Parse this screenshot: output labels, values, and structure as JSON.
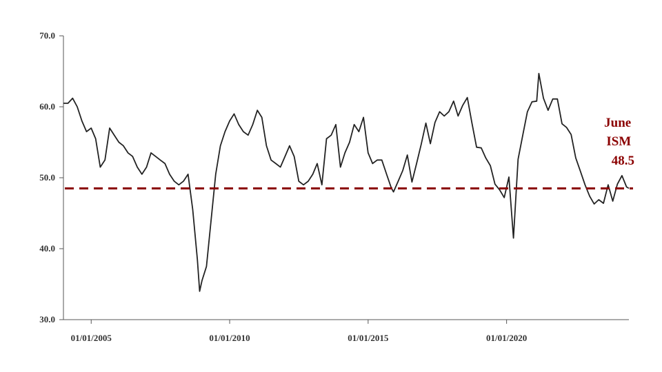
{
  "chart_data": {
    "type": "line",
    "title": "",
    "xlabel": "",
    "ylabel": "",
    "ylim": [
      30,
      70
    ],
    "xlim": [
      "2004-01-01",
      "2024-06-01"
    ],
    "grid": false,
    "legend": "none",
    "y_ticks": [
      "30.0",
      "40.0",
      "50.0",
      "60.0",
      "70.0"
    ],
    "x_ticks": [
      {
        "date": "2005-01-01",
        "label": "01/01/2005"
      },
      {
        "date": "2010-01-01",
        "label": "01/01/2010"
      },
      {
        "date": "2015-01-01",
        "label": "01/01/2015"
      },
      {
        "date": "2020-01-01",
        "label": "01/01/2020"
      }
    ],
    "reference_line": {
      "value": 48.5,
      "color": "#8b0000",
      "style": "dashed"
    },
    "annotation": {
      "lines": [
        "June",
        "ISM",
        "48.5"
      ],
      "color": "#8b0000"
    },
    "series": [
      {
        "color": "#222222",
        "x": [
          "2004-01-01",
          "2004-03-01",
          "2004-05-01",
          "2004-07-01",
          "2004-09-01",
          "2004-11-01",
          "2005-01-01",
          "2005-03-01",
          "2005-05-01",
          "2005-07-01",
          "2005-09-01",
          "2005-11-01",
          "2006-01-01",
          "2006-03-01",
          "2006-05-01",
          "2006-07-01",
          "2006-09-01",
          "2006-11-01",
          "2007-01-01",
          "2007-03-01",
          "2007-05-01",
          "2007-07-01",
          "2007-09-01",
          "2007-11-01",
          "2008-01-01",
          "2008-03-01",
          "2008-05-01",
          "2008-07-01",
          "2008-09-01",
          "2008-11-01",
          "2008-12-01",
          "2009-01-01",
          "2009-03-01",
          "2009-05-01",
          "2009-07-01",
          "2009-09-01",
          "2009-11-01",
          "2010-01-01",
          "2010-03-01",
          "2010-05-01",
          "2010-07-01",
          "2010-09-01",
          "2010-11-01",
          "2011-01-01",
          "2011-03-01",
          "2011-05-01",
          "2011-07-01",
          "2011-09-01",
          "2011-11-01",
          "2012-01-01",
          "2012-03-01",
          "2012-05-01",
          "2012-07-01",
          "2012-09-01",
          "2012-11-01",
          "2013-01-01",
          "2013-03-01",
          "2013-05-01",
          "2013-07-01",
          "2013-09-01",
          "2013-11-01",
          "2014-01-01",
          "2014-03-01",
          "2014-05-01",
          "2014-07-01",
          "2014-09-01",
          "2014-11-01",
          "2015-01-01",
          "2015-03-01",
          "2015-05-01",
          "2015-07-01",
          "2015-09-01",
          "2015-11-01",
          "2015-12-01",
          "2016-02-01",
          "2016-04-01",
          "2016-06-01",
          "2016-08-01",
          "2016-10-01",
          "2016-12-01",
          "2017-02-01",
          "2017-04-01",
          "2017-06-01",
          "2017-08-01",
          "2017-10-01",
          "2017-12-01",
          "2018-02-01",
          "2018-04-01",
          "2018-06-01",
          "2018-08-01",
          "2018-10-01",
          "2018-12-01",
          "2019-02-01",
          "2019-04-01",
          "2019-06-01",
          "2019-08-01",
          "2019-10-01",
          "2019-12-01",
          "2020-02-01",
          "2020-04-01",
          "2020-06-01",
          "2020-08-01",
          "2020-10-01",
          "2020-12-01",
          "2021-02-01",
          "2021-03-01",
          "2021-05-01",
          "2021-07-01",
          "2021-09-01",
          "2021-11-01",
          "2022-01-01",
          "2022-03-01",
          "2022-05-01",
          "2022-07-01",
          "2022-09-01",
          "2022-11-01",
          "2023-01-01",
          "2023-03-01",
          "2023-05-01",
          "2023-07-01",
          "2023-09-01",
          "2023-11-01",
          "2024-01-01",
          "2024-03-01",
          "2024-05-01",
          "2024-06-01"
        ],
        "y": [
          60.5,
          60.5,
          61.2,
          60.0,
          58.0,
          56.5,
          57.0,
          55.5,
          51.5,
          52.5,
          57.0,
          56.0,
          55.0,
          54.5,
          53.5,
          53.0,
          51.5,
          50.5,
          51.5,
          53.5,
          53.0,
          52.5,
          52.0,
          50.5,
          49.5,
          49.0,
          49.5,
          50.5,
          45.5,
          38.5,
          34.0,
          35.5,
          37.5,
          44.0,
          50.5,
          54.5,
          56.5,
          58.0,
          59.0,
          57.5,
          56.5,
          56.0,
          57.5,
          59.5,
          58.5,
          54.5,
          52.5,
          52.0,
          51.5,
          53.0,
          54.5,
          53.0,
          49.5,
          49.0,
          49.5,
          50.5,
          52.0,
          49.0,
          55.5,
          56.0,
          57.5,
          51.5,
          53.5,
          55.0,
          57.5,
          56.5,
          58.5,
          53.5,
          52.0,
          52.5,
          52.5,
          50.5,
          48.6,
          48.0,
          49.5,
          51.0,
          53.2,
          49.4,
          52.0,
          54.7,
          57.7,
          54.8,
          57.8,
          59.3,
          58.7,
          59.3,
          60.8,
          58.7,
          60.2,
          61.3,
          57.7,
          54.3,
          54.2,
          52.8,
          51.7,
          49.1,
          48.3,
          47.2,
          50.1,
          41.5,
          52.6,
          56.0,
          59.3,
          60.7,
          60.8,
          64.7,
          61.2,
          59.5,
          61.1,
          61.1,
          57.6,
          57.1,
          56.1,
          52.8,
          50.9,
          49.0,
          47.4,
          46.3,
          46.9,
          46.4,
          49.0,
          46.7,
          49.1,
          50.3,
          48.7,
          48.5
        ]
      }
    ]
  }
}
